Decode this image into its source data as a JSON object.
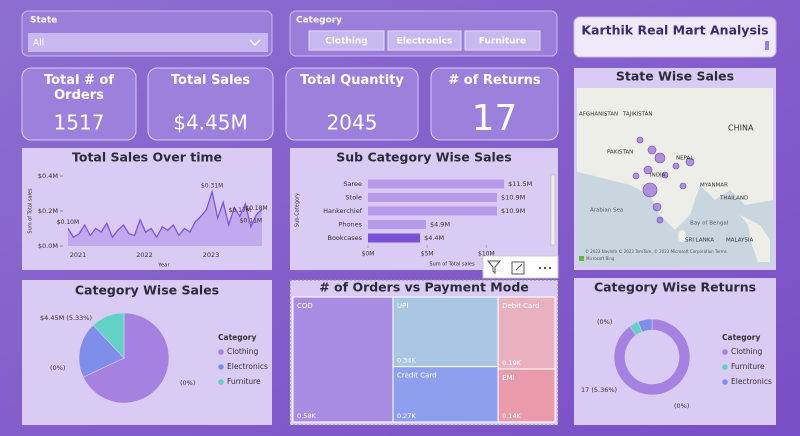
{
  "slicers": {
    "state": {
      "label": "State",
      "selected": "All"
    },
    "category": {
      "label": "Category",
      "options": [
        "Clothing",
        "Electronics",
        "Furniture"
      ]
    }
  },
  "report_title": "Karthik Real Mart Analysis",
  "cards": [
    {
      "label": "Total # of Orders",
      "value": "1517"
    },
    {
      "label": "Total Sales",
      "value": "$4.45M"
    },
    {
      "label": "Total Quantity",
      "value": "2045"
    },
    {
      "label": "# of Returns",
      "value": "17"
    }
  ],
  "map": {
    "title": "State Wise Sales",
    "labels": [
      "AFGHANISTAN",
      "TAJIKISTAN",
      "PAKISTAN",
      "NEPAL",
      "CHINA",
      "INDIA",
      "MYANMAR",
      "THAILAND",
      "Arabian Sea",
      "Bay of Bengal",
      "SRI LANKA",
      "MALAYSIA"
    ],
    "attribution": "© 2023 NavInfo © 2023 TomTom, © 2023 Microsoft Corporation  Terms",
    "brand": "Microsoft Bing"
  },
  "chart_data": [
    {
      "type": "line",
      "title": "Total Sales Over time",
      "x_label": "Year",
      "y_label": "Sum of Total sales",
      "categories": [
        "2021",
        null,
        null,
        null,
        null,
        null,
        null,
        null,
        null,
        null,
        null,
        null,
        "2022",
        null,
        null,
        null,
        null,
        null,
        null,
        null,
        null,
        null,
        null,
        null,
        "2023",
        null,
        null,
        null,
        null,
        null,
        null,
        null,
        null,
        null,
        null,
        null
      ],
      "values": [
        0.1,
        0.05,
        0.07,
        0.12,
        0.06,
        0.1,
        0.08,
        0.13,
        0.05,
        0.09,
        0.12,
        0.07,
        0.06,
        0.15,
        0.08,
        0.1,
        0.05,
        0.11,
        0.09,
        0.12,
        0.06,
        0.1,
        0.08,
        0.14,
        0.17,
        0.21,
        0.31,
        0.16,
        0.25,
        0.12,
        0.22,
        0.17,
        0.24,
        0.11,
        0.18,
        0.21
      ],
      "value_labels": [
        "$0.10M",
        null,
        null,
        null,
        null,
        null,
        null,
        null,
        null,
        null,
        null,
        null,
        null,
        null,
        null,
        null,
        null,
        null,
        null,
        null,
        null,
        null,
        null,
        null,
        null,
        null,
        "$0.31M",
        null,
        null,
        null,
        null,
        "$0.17M",
        null,
        "$0.11M",
        "$0.18M",
        null
      ],
      "ylim": [
        0,
        0.4
      ],
      "yticks": [
        {
          "value": 0,
          "label": "$0.0M"
        },
        {
          "value": 0.2,
          "label": "$0.2M"
        },
        {
          "value": 0.4,
          "label": "$0.4M"
        }
      ],
      "color": "#7d55d8"
    },
    {
      "type": "hbar",
      "title": "Sub Category Wise Sales",
      "x_label": "Sum of Total sales",
      "y_label": "Sub-Category",
      "categories": [
        "Saree",
        "Stole",
        "Hankerchief",
        "Phones",
        "Bookcases"
      ],
      "values": [
        11.5,
        10.9,
        10.9,
        4.9,
        4.4
      ],
      "value_labels": [
        "$11.5M",
        "$10.9M",
        "$10.9M",
        "$4.9M",
        "$4.4M"
      ],
      "colors": [
        "#b59be9",
        "#b59be9",
        "#b59be9",
        "#b59be9",
        "#7b52d6"
      ],
      "xlim": [
        0,
        12
      ],
      "xticks": [
        {
          "value": 0,
          "label": "$0M"
        },
        {
          "value": 5,
          "label": "$5M"
        },
        {
          "value": 10,
          "label": "$10M"
        }
      ]
    },
    {
      "type": "pie",
      "title": "Category Wise Sales",
      "legend_title": "Category",
      "categories": [
        "Clothing",
        "Electronics",
        "Furniture"
      ],
      "values": [
        68,
        20,
        12
      ],
      "colors": [
        "#a582e2",
        "#7f8ee8",
        "#62d2c6"
      ],
      "annotations": [
        "$4.45M (5.33%)",
        "(0%)",
        "(0%)"
      ]
    },
    {
      "type": "treemap",
      "title": "# of Orders vs Payment Mode",
      "categories": [
        "COD",
        "UPI",
        "Credit Card",
        "Debit Card",
        "EMI"
      ],
      "values": [
        580,
        340,
        270,
        190,
        140
      ],
      "value_labels": [
        "0.58K",
        "0.34K",
        "0.27K",
        "0.19K",
        "0.14K"
      ],
      "colors": [
        "#a88ce2",
        "#a9c7e2",
        "#8f9ff0",
        "#e9b0c0",
        "#e99bab"
      ]
    },
    {
      "type": "donut",
      "title": "Category Wise Returns",
      "legend_title": "Category",
      "categories": [
        "Clothing",
        "Furniture",
        "Electronics"
      ],
      "values": [
        90,
        4,
        6
      ],
      "colors": [
        "#a582e2",
        "#62d2c6",
        "#7f8ee8"
      ],
      "annotations": [
        "(0%)",
        "17 (5.36%)",
        "(0%)"
      ]
    }
  ]
}
